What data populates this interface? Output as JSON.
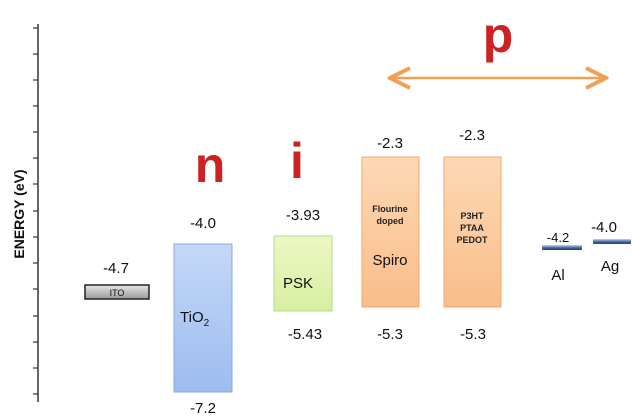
{
  "axis": {
    "label": "ENERGY (eV)"
  },
  "regions": {
    "n": "n",
    "i": "i",
    "p": "p"
  },
  "materials": {
    "ito": {
      "name": "ITO",
      "level": "-4.7"
    },
    "tio2": {
      "name_main": "TiO",
      "name_sub": "2",
      "top": "-4.0",
      "bottom": "-7.2"
    },
    "psk": {
      "name": "PSK",
      "top": "-3.93",
      "bottom": "-5.43"
    },
    "spiro": {
      "name": "Spiro",
      "note_line1": "Flourine",
      "note_line2": "doped",
      "top": "-2.3",
      "bottom": "-5.3"
    },
    "htm": {
      "line1": "P3HT",
      "line2": "PTAA",
      "line3": "PEDOT",
      "top": "-2.3",
      "bottom": "-5.3"
    },
    "al": {
      "name": "Al",
      "level": "-4.2"
    },
    "ag": {
      "name": "Ag",
      "level": "-4.0"
    }
  },
  "colors": {
    "n_letter": "#cc2222",
    "p_letter": "#cc2222",
    "arrow": "#f0a050",
    "tio2_fill": "#aac6f2",
    "psk_fill": "#dff2b0",
    "orange_fill": "#fbc89c",
    "ito_fill": "#bbbbbb"
  }
}
